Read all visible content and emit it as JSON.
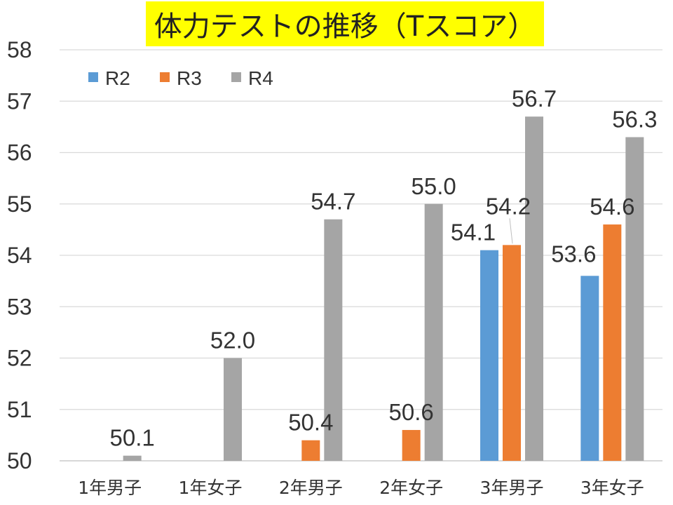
{
  "chart_data": {
    "type": "bar",
    "title": "体力テストの推移（Tスコア）",
    "categories": [
      "1年男子",
      "1年女子",
      "2年男子",
      "2年女子",
      "3年男子",
      "3年女子"
    ],
    "series": [
      {
        "name": "R2",
        "color": "#5B9BD5",
        "values": [
          null,
          null,
          null,
          null,
          54.1,
          53.6
        ]
      },
      {
        "name": "R3",
        "color": "#ED7D31",
        "values": [
          null,
          null,
          50.4,
          50.6,
          54.2,
          54.6
        ]
      },
      {
        "name": "R4",
        "color": "#A5A5A5",
        "values": [
          50.1,
          52.0,
          54.7,
          55.0,
          56.7,
          56.3
        ]
      }
    ],
    "ylim": [
      50,
      58
    ],
    "yticks": [
      50,
      51,
      52,
      53,
      54,
      55,
      56,
      57,
      58
    ],
    "grid": true,
    "legend_position": "top-left",
    "title_background": "#FFFF00"
  }
}
